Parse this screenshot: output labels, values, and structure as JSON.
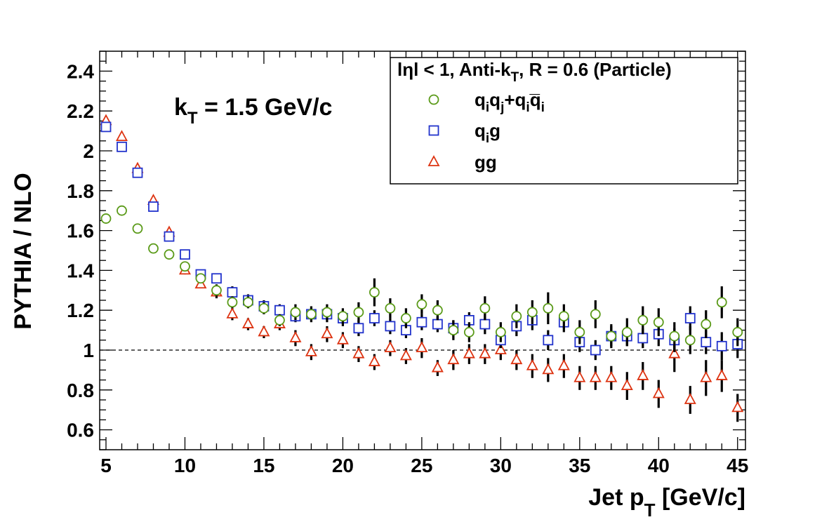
{
  "chart_data": {
    "type": "scatter",
    "xlabel": "Jet p",
    "xlabel_sub": "T",
    "xlabel_suffix": " [GeV/c]",
    "ylabel": "PYTHIA / NLO",
    "xlim": [
      4.6,
      45.5
    ],
    "ylim": [
      0.5,
      2.5
    ],
    "x_ticks": [
      5,
      10,
      15,
      20,
      25,
      30,
      35,
      40,
      45
    ],
    "y_ticks": [
      0.6,
      0.8,
      1,
      1.2,
      1.4,
      1.6,
      1.8,
      2,
      2.2,
      2.4
    ],
    "x_tick_labels": [
      "5",
      "10",
      "15",
      "20",
      "25",
      "30",
      "35",
      "40",
      "45"
    ],
    "y_tick_labels": [
      "0.6",
      "0.8",
      "1",
      "1.2",
      "1.4",
      "1.6",
      "1.8",
      "2",
      "2.2",
      "2.4"
    ],
    "reference_line": 1,
    "annotation": {
      "main": "k",
      "sub": "T",
      "suffix": " = 1.5 GeV/c"
    },
    "legend": {
      "position": "top-right",
      "header": {
        "a": "lηl < 1, Anti-k",
        "sub": "T",
        "b": ", R = 0.6 (Particle)"
      }
    },
    "series": [
      {
        "marker": "circle",
        "color": "#5a9a18",
        "x": [
          5,
          6,
          7,
          8,
          9,
          10,
          11,
          12,
          13,
          14,
          15,
          16,
          17,
          18,
          19,
          20,
          21,
          22,
          23,
          24,
          25,
          26,
          27,
          28,
          29,
          30,
          31,
          32,
          33,
          34,
          35,
          36,
          37,
          38,
          39,
          40,
          41,
          42,
          43,
          44,
          45
        ],
        "y": [
          1.66,
          1.7,
          1.61,
          1.51,
          1.48,
          1.42,
          1.36,
          1.3,
          1.24,
          1.24,
          1.21,
          1.15,
          1.19,
          1.18,
          1.19,
          1.17,
          1.19,
          1.29,
          1.21,
          1.16,
          1.23,
          1.2,
          1.1,
          1.09,
          1.21,
          1.09,
          1.17,
          1.19,
          1.21,
          1.17,
          1.09,
          1.18,
          1.07,
          1.09,
          1.15,
          1.14,
          1.07,
          1.05,
          1.13,
          1.24,
          1.09
        ],
        "err": [
          0.01,
          0.015,
          0.015,
          0.02,
          0.02,
          0.02,
          0.02,
          0.03,
          0.03,
          0.03,
          0.03,
          0.03,
          0.04,
          0.04,
          0.04,
          0.04,
          0.05,
          0.07,
          0.05,
          0.05,
          0.05,
          0.05,
          0.05,
          0.05,
          0.06,
          0.05,
          0.06,
          0.06,
          0.08,
          0.06,
          0.06,
          0.07,
          0.06,
          0.07,
          0.07,
          0.07,
          0.07,
          0.07,
          0.07,
          0.08,
          0.07
        ]
      },
      {
        "marker": "square",
        "color": "#2233cc",
        "x": [
          5,
          6,
          7,
          8,
          9,
          10,
          11,
          12,
          13,
          14,
          15,
          16,
          17,
          18,
          19,
          20,
          21,
          22,
          23,
          24,
          25,
          26,
          27,
          28,
          29,
          30,
          31,
          32,
          33,
          34,
          35,
          36,
          37,
          38,
          39,
          40,
          41,
          42,
          43,
          44,
          45
        ],
        "y": [
          2.12,
          2.02,
          1.89,
          1.72,
          1.57,
          1.48,
          1.38,
          1.36,
          1.29,
          1.25,
          1.22,
          1.2,
          1.17,
          1.18,
          1.18,
          1.16,
          1.11,
          1.16,
          1.12,
          1.1,
          1.14,
          1.13,
          1.11,
          1.15,
          1.13,
          1.05,
          1.12,
          1.15,
          1.05,
          1.14,
          1.04,
          1.0,
          1.07,
          1.07,
          1.06,
          1.08,
          1.05,
          1.16,
          1.04,
          1.02,
          1.03
        ],
        "err": [
          0.01,
          0.01,
          0.01,
          0.015,
          0.015,
          0.02,
          0.02,
          0.02,
          0.03,
          0.03,
          0.03,
          0.03,
          0.03,
          0.03,
          0.04,
          0.04,
          0.04,
          0.04,
          0.04,
          0.04,
          0.04,
          0.04,
          0.04,
          0.04,
          0.05,
          0.04,
          0.05,
          0.05,
          0.05,
          0.05,
          0.05,
          0.05,
          0.05,
          0.05,
          0.05,
          0.06,
          0.06,
          0.06,
          0.06,
          0.07,
          0.07
        ]
      },
      {
        "marker": "triangle",
        "color": "#dd3311",
        "x": [
          5,
          6,
          7,
          8,
          9,
          10,
          11,
          12,
          13,
          14,
          15,
          16,
          17,
          18,
          19,
          20,
          21,
          22,
          23,
          24,
          25,
          26,
          27,
          28,
          29,
          30,
          31,
          32,
          33,
          34,
          35,
          36,
          37,
          38,
          39,
          40,
          41,
          42,
          43,
          44,
          45
        ],
        "y": [
          2.15,
          2.07,
          1.91,
          1.75,
          1.59,
          1.4,
          1.33,
          1.29,
          1.18,
          1.13,
          1.09,
          1.13,
          1.06,
          0.99,
          1.08,
          1.05,
          0.98,
          0.94,
          1.01,
          0.97,
          1.01,
          0.91,
          0.95,
          0.98,
          0.98,
          1.0,
          0.95,
          0.92,
          0.9,
          0.92,
          0.86,
          0.86,
          0.86,
          0.82,
          0.87,
          0.78,
          0.98,
          0.75,
          0.86,
          0.87,
          0.71
        ],
        "err": [
          0.01,
          0.01,
          0.01,
          0.015,
          0.015,
          0.02,
          0.02,
          0.03,
          0.03,
          0.03,
          0.03,
          0.03,
          0.04,
          0.04,
          0.04,
          0.04,
          0.04,
          0.04,
          0.04,
          0.04,
          0.05,
          0.04,
          0.05,
          0.05,
          0.05,
          0.05,
          0.05,
          0.06,
          0.06,
          0.06,
          0.06,
          0.06,
          0.06,
          0.07,
          0.07,
          0.07,
          0.09,
          0.07,
          0.09,
          0.08,
          0.07
        ]
      }
    ],
    "legend_entries": [
      {
        "parts": [
          [
            "q",
            0
          ],
          [
            "i",
            1
          ],
          [
            "q",
            0
          ],
          [
            "j",
            1
          ],
          [
            "+q",
            0
          ],
          [
            "i",
            1
          ],
          [
            "q̅",
            0
          ],
          [
            "i",
            1
          ]
        ]
      },
      {
        "parts": [
          [
            "q",
            0
          ],
          [
            "i",
            1
          ],
          [
            "g",
            0
          ]
        ]
      },
      {
        "parts": [
          [
            "gg",
            0
          ]
        ]
      }
    ]
  }
}
